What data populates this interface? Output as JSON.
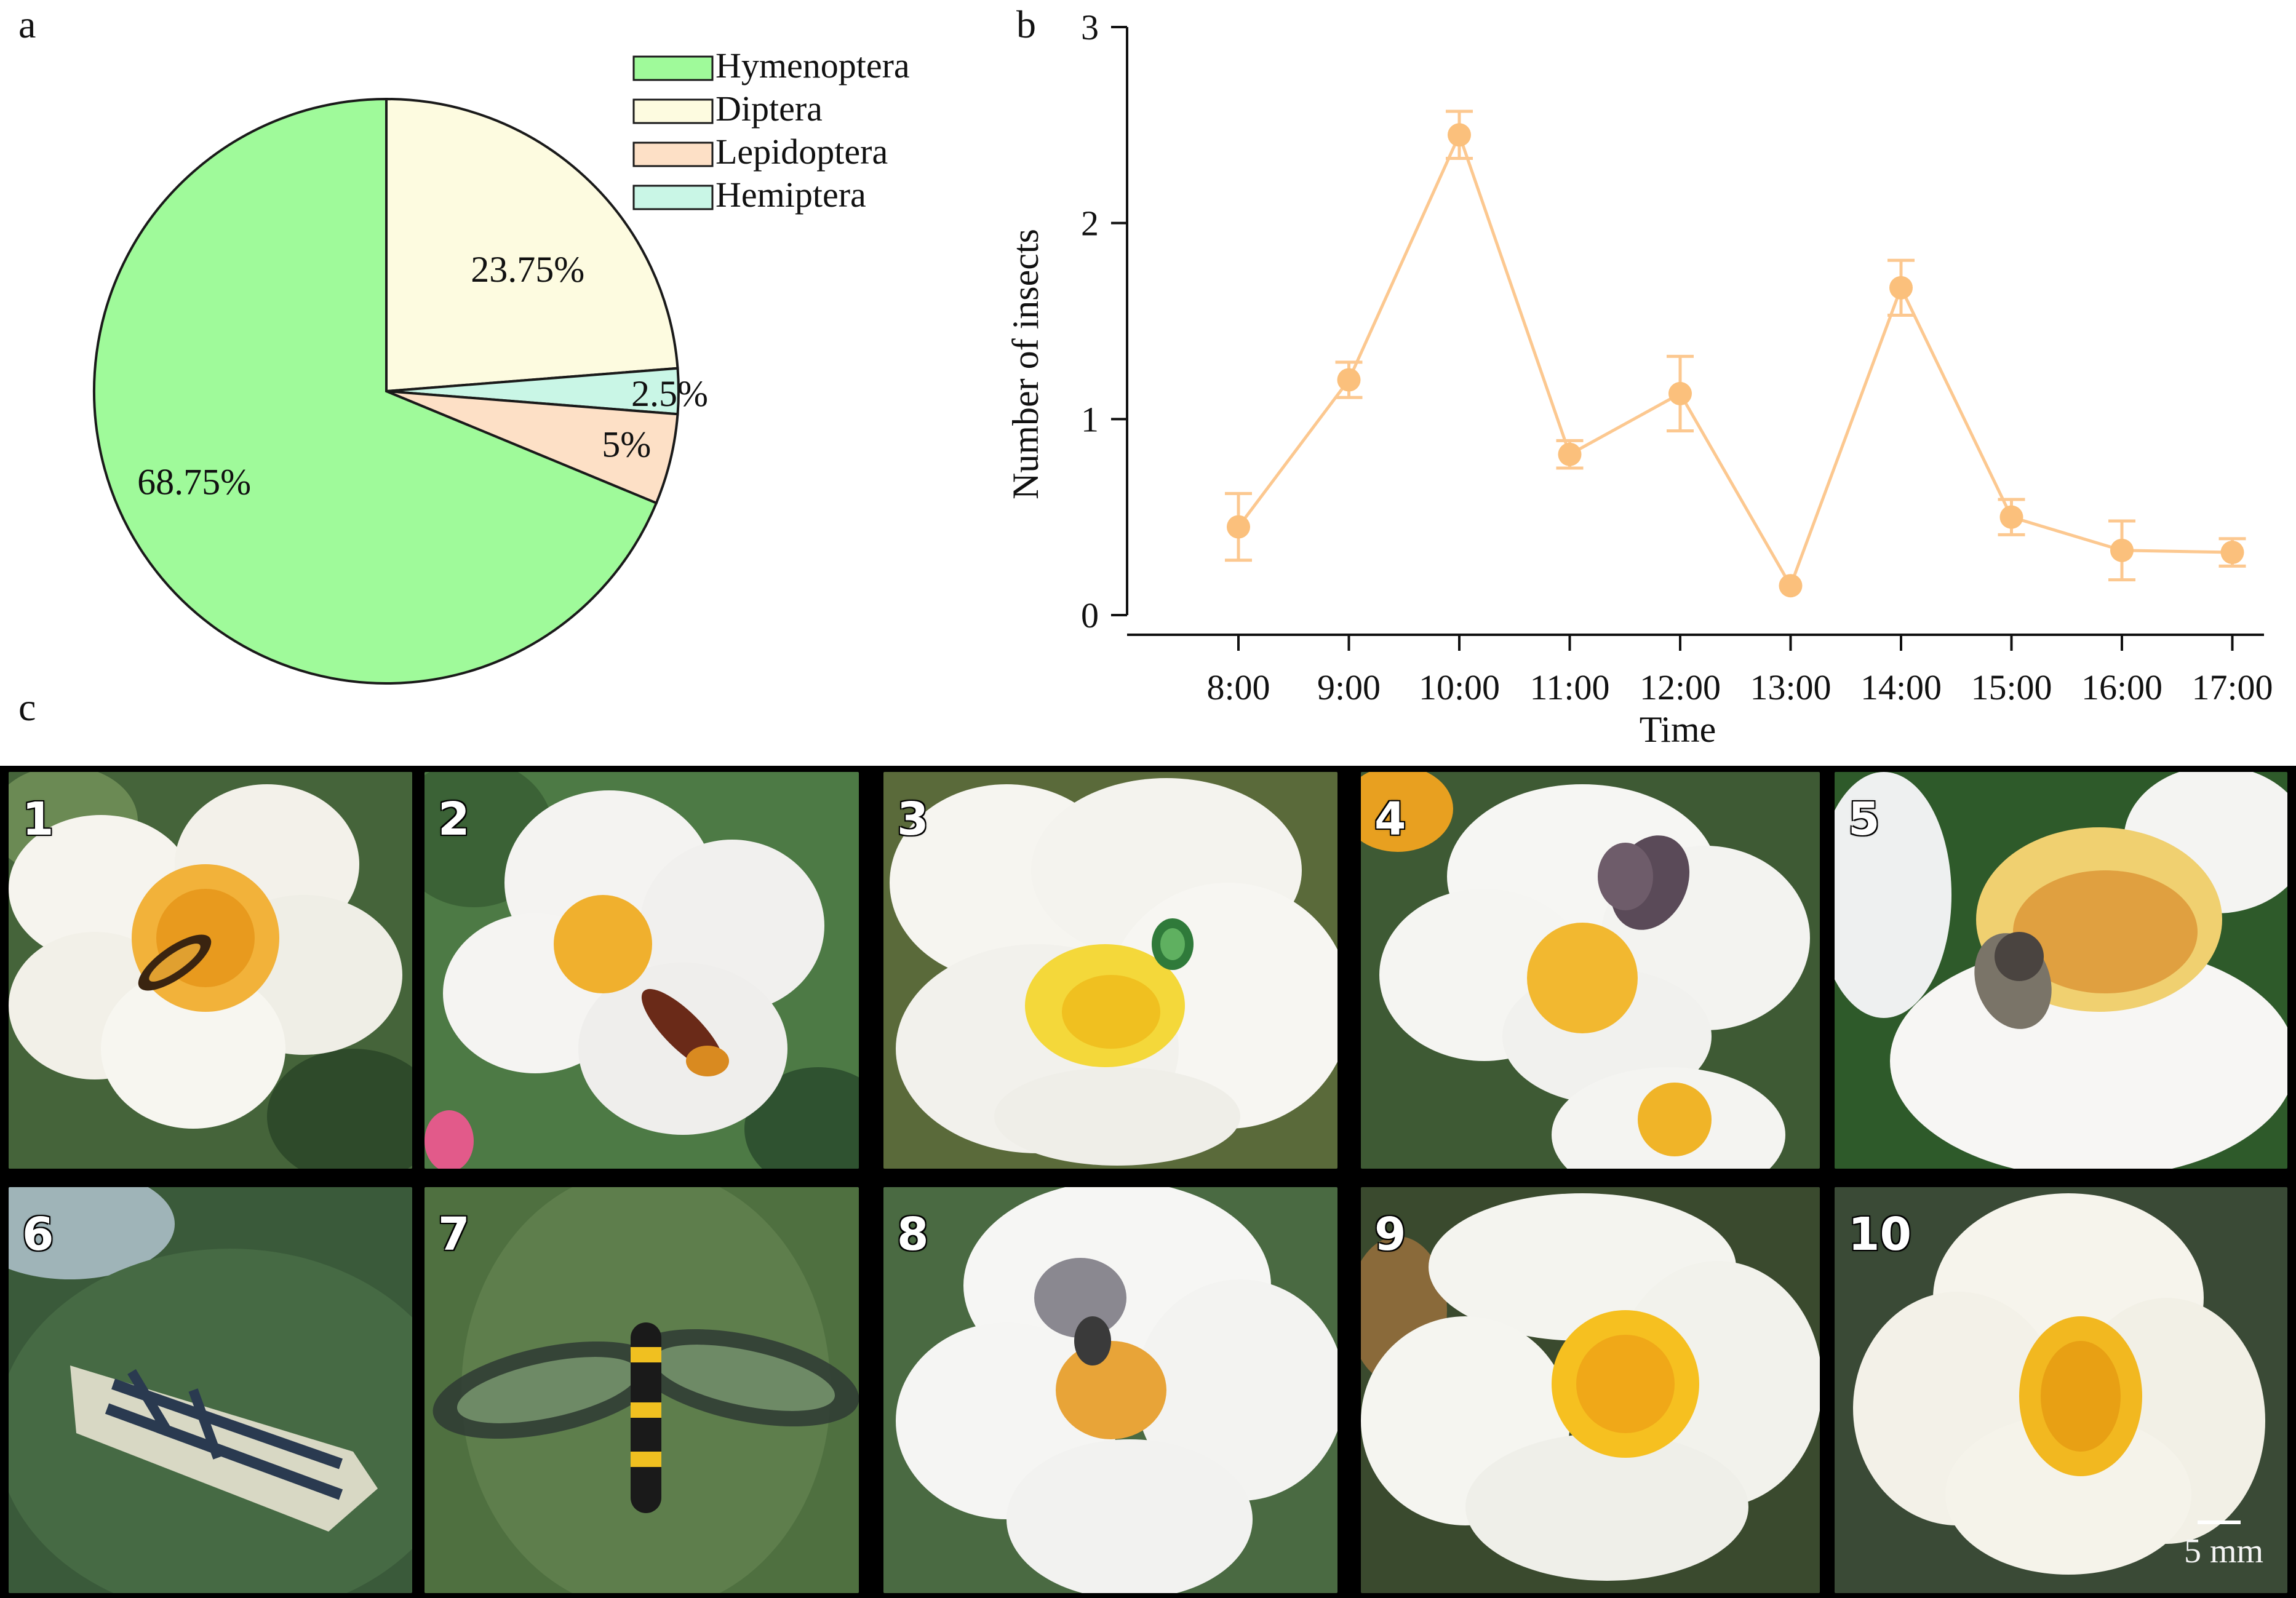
{
  "panels": {
    "a": "a",
    "b": "b",
    "c": "c"
  },
  "colors": {
    "hymenoptera": "#9ffa9a",
    "diptera": "#fdfbe0",
    "lepidoptera": "#fde0c6",
    "hemiptera": "#c9f6e6",
    "line": "#fcc890",
    "marker": "#fbc07c"
  },
  "chart_data": [
    {
      "type": "pie",
      "title": "",
      "slices": [
        {
          "name": "Hymenoptera",
          "value": 68.75,
          "label": "68.75%"
        },
        {
          "name": "Diptera",
          "value": 23.75,
          "label": "23.75%"
        },
        {
          "name": "Hemiptera",
          "value": 2.5,
          "label": "2.5%"
        },
        {
          "name": "Lepidoptera",
          "value": 5,
          "label": "5%"
        }
      ],
      "legend": [
        "Hymenoptera",
        "Diptera",
        "Lepidoptera",
        "Hemiptera"
      ],
      "legend_position": "top-right"
    },
    {
      "type": "line",
      "title": "",
      "xlabel": "Time",
      "ylabel": "Number of insects",
      "categories": [
        "8:00",
        "9:00",
        "10:00",
        "11:00",
        "12:00",
        "13:00",
        "14:00",
        "15:00",
        "16:00",
        "17:00"
      ],
      "values": [
        0.45,
        1.2,
        2.45,
        0.82,
        1.13,
        0.15,
        1.67,
        0.5,
        0.33,
        0.32
      ],
      "errors": [
        0.17,
        0.09,
        0.12,
        0.07,
        0.19,
        0.0,
        0.14,
        0.09,
        0.15,
        0.07
      ],
      "ylim": [
        0,
        3
      ],
      "yticks": [
        "0",
        "1",
        "2",
        "3"
      ],
      "grid": false
    }
  ],
  "photos": [
    {
      "num": "1",
      "insect": "hoverfly"
    },
    {
      "num": "2",
      "insect": "wasp"
    },
    {
      "num": "3",
      "insect": "green-fly"
    },
    {
      "num": "4",
      "insect": "butterfly"
    },
    {
      "num": "5",
      "insect": "flesh-fly"
    },
    {
      "num": "6",
      "insect": "striped-moth"
    },
    {
      "num": "7",
      "insect": "clearwing-moth"
    },
    {
      "num": "8",
      "insect": "grey-butterfly"
    },
    {
      "num": "9",
      "insect": "flower"
    },
    {
      "num": "10",
      "insect": "flower"
    }
  ],
  "scale_bar": "5 mm"
}
